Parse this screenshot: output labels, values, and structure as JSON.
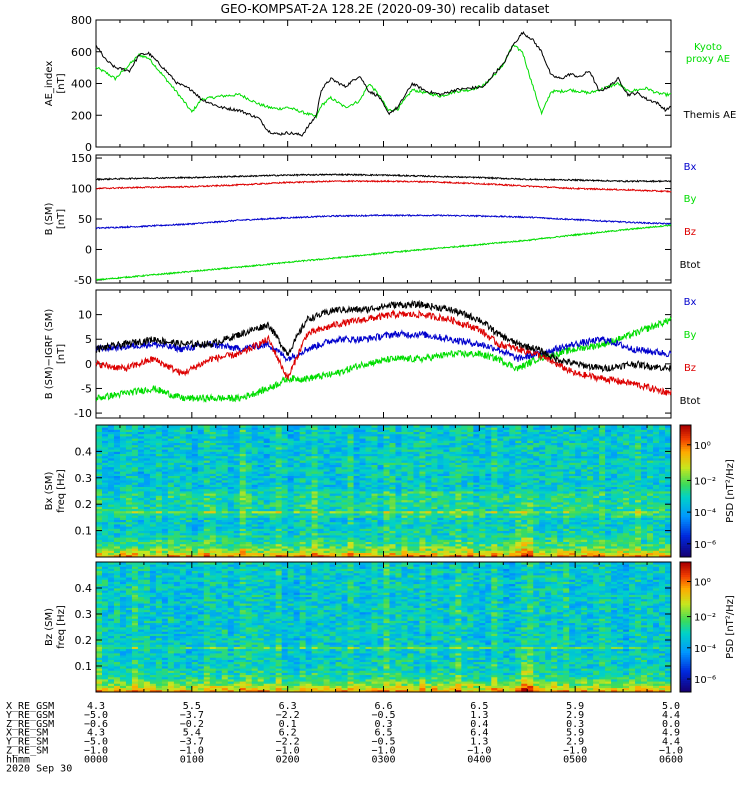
{
  "title": "GEO-KOMPSAT-2A 128.2E (2020-09-30) recalib dataset",
  "colors": {
    "black": "#000000",
    "red": "#dd0000",
    "blue": "#0000cc",
    "green": "#00dd00"
  },
  "chart_data": [
    {
      "type": "line",
      "panel": "ae",
      "ylabel": "AE_index [nT]",
      "ylim": [
        0,
        800
      ],
      "yticks": [
        0,
        200,
        400,
        600,
        800
      ],
      "x_unit": "hours since 2020-09-30 00:00 UT",
      "xlim": [
        0,
        6
      ],
      "series": [
        {
          "name": "Themis AE",
          "color": "#000000",
          "x": [
            0,
            0.1,
            0.2,
            0.35,
            0.45,
            0.55,
            0.7,
            0.85,
            1.0,
            1.1,
            1.3,
            1.5,
            1.7,
            1.8,
            1.9,
            2.0,
            2.15,
            2.3,
            2.35,
            2.45,
            2.6,
            2.75,
            2.85,
            2.95,
            3.05,
            3.15,
            3.3,
            3.45,
            3.6,
            3.75,
            3.9,
            4.05,
            4.15,
            4.25,
            4.35,
            4.45,
            4.55,
            4.65,
            4.75,
            4.85,
            4.95,
            5.05,
            5.15,
            5.25,
            5.35,
            5.45,
            5.55,
            5.65,
            5.75,
            5.85,
            5.95,
            6.0
          ],
          "values": [
            640,
            550,
            500,
            480,
            580,
            590,
            500,
            400,
            360,
            300,
            250,
            230,
            180,
            100,
            80,
            90,
            75,
            200,
            360,
            430,
            380,
            450,
            350,
            320,
            210,
            250,
            400,
            350,
            330,
            360,
            370,
            380,
            460,
            520,
            640,
            720,
            680,
            600,
            450,
            430,
            460,
            440,
            480,
            350,
            380,
            430,
            330,
            340,
            300,
            280,
            230,
            260
          ]
        },
        {
          "name": "Kyoto proxy AE",
          "color": "#00dd00",
          "x": [
            0,
            0.1,
            0.2,
            0.35,
            0.45,
            0.55,
            0.7,
            0.85,
            1.0,
            1.1,
            1.3,
            1.5,
            1.7,
            1.8,
            1.9,
            2.0,
            2.15,
            2.3,
            2.35,
            2.45,
            2.6,
            2.75,
            2.85,
            2.95,
            3.05,
            3.15,
            3.3,
            3.45,
            3.6,
            3.75,
            3.9,
            4.05,
            4.15,
            4.25,
            4.35,
            4.45,
            4.55,
            4.65,
            4.75,
            4.85,
            4.95,
            5.05,
            5.15,
            5.25,
            5.35,
            5.45,
            5.55,
            5.65,
            5.75,
            5.85,
            5.95,
            6.0
          ],
          "values": [
            500,
            470,
            430,
            520,
            580,
            560,
            450,
            340,
            220,
            300,
            320,
            330,
            270,
            250,
            240,
            250,
            220,
            190,
            260,
            310,
            250,
            290,
            400,
            330,
            230,
            240,
            360,
            340,
            320,
            350,
            360,
            390,
            450,
            520,
            640,
            600,
            400,
            210,
            350,
            350,
            360,
            350,
            340,
            360,
            380,
            400,
            350,
            360,
            370,
            340,
            330,
            330
          ]
        }
      ],
      "legend": [
        "Kyoto proxy AE",
        "Themis AE"
      ]
    },
    {
      "type": "line",
      "panel": "b",
      "ylabel": "B (SM) [nT]",
      "ylim": [
        -55,
        155
      ],
      "yticks": [
        -50,
        0,
        50,
        100,
        150
      ],
      "xlim": [
        0,
        6
      ],
      "series": [
        {
          "name": "Bx",
          "color": "#0000cc",
          "x": [
            0,
            0.5,
            1.0,
            1.5,
            2.0,
            2.5,
            3.0,
            3.5,
            4.0,
            4.5,
            5.0,
            5.5,
            6.0
          ],
          "values": [
            35,
            38,
            42,
            48,
            52,
            55,
            56,
            56,
            55,
            53,
            49,
            45,
            42
          ]
        },
        {
          "name": "By",
          "color": "#00dd00",
          "x": [
            0,
            0.5,
            1.0,
            1.5,
            2.0,
            2.5,
            3.0,
            3.5,
            4.0,
            4.5,
            5.0,
            5.5,
            6.0
          ],
          "values": [
            -50,
            -43,
            -36,
            -29,
            -21,
            -14,
            -6,
            1,
            8,
            15,
            24,
            32,
            40
          ]
        },
        {
          "name": "Bz",
          "color": "#dd0000",
          "x": [
            0,
            0.5,
            1.0,
            1.5,
            2.0,
            2.5,
            3.0,
            3.5,
            4.0,
            4.5,
            5.0,
            5.5,
            6.0
          ],
          "values": [
            100,
            102,
            103,
            106,
            110,
            112,
            112,
            111,
            108,
            104,
            100,
            98,
            95
          ]
        },
        {
          "name": "Btot",
          "color": "#000000",
          "x": [
            0,
            0.5,
            1.0,
            1.5,
            2.0,
            2.5,
            3.0,
            3.5,
            4.0,
            4.5,
            5.0,
            5.5,
            6.0
          ],
          "values": [
            115,
            117,
            118,
            120,
            122,
            123,
            122,
            120,
            118,
            115,
            114,
            112,
            112
          ]
        }
      ],
      "legend": [
        "Bx",
        "By",
        "Bz",
        "Btot"
      ]
    },
    {
      "type": "line",
      "panel": "db",
      "ylabel": "B (SM)-IGRF (SM) [nT]",
      "ylim": [
        -11,
        15
      ],
      "yticks": [
        -10,
        -5,
        0,
        5,
        10
      ],
      "xlim": [
        0,
        6
      ],
      "series": [
        {
          "name": "Bx",
          "color": "#0000cc",
          "x": [
            0,
            0.3,
            0.6,
            0.9,
            1.2,
            1.5,
            1.8,
            2.0,
            2.2,
            2.5,
            2.8,
            3.1,
            3.4,
            3.7,
            4.0,
            4.2,
            4.4,
            4.6,
            4.8,
            5.0,
            5.3,
            5.6,
            6.0
          ],
          "values": [
            3,
            3.5,
            4,
            3,
            4,
            3,
            4,
            1,
            3,
            5,
            5,
            6,
            6,
            5,
            4,
            3,
            1,
            2,
            3,
            4,
            5,
            3,
            2
          ]
        },
        {
          "name": "By",
          "color": "#00dd00",
          "x": [
            0,
            0.3,
            0.6,
            0.9,
            1.2,
            1.5,
            1.8,
            2.0,
            2.2,
            2.5,
            2.8,
            3.1,
            3.4,
            3.7,
            4.0,
            4.2,
            4.4,
            4.6,
            4.8,
            5.0,
            5.3,
            5.6,
            6.0
          ],
          "values": [
            -7,
            -6,
            -5,
            -7,
            -7,
            -7,
            -5,
            -3,
            -3,
            -2,
            0,
            1,
            1,
            2,
            2,
            1,
            -1,
            1,
            2,
            3,
            4,
            6,
            9
          ]
        },
        {
          "name": "Bz",
          "color": "#dd0000",
          "x": [
            0,
            0.3,
            0.6,
            0.9,
            1.2,
            1.5,
            1.8,
            2.0,
            2.2,
            2.5,
            2.8,
            3.1,
            3.4,
            3.7,
            4.0,
            4.2,
            4.4,
            4.6,
            4.8,
            5.0,
            5.3,
            5.6,
            6.0
          ],
          "values": [
            0,
            -1,
            1,
            -2,
            1,
            2,
            5,
            -3,
            6,
            8,
            9,
            10,
            10,
            9,
            7,
            4,
            3,
            2,
            0,
            -2,
            -3,
            -4,
            -6
          ]
        },
        {
          "name": "Btot",
          "color": "#000000",
          "x": [
            0,
            0.3,
            0.6,
            0.9,
            1.2,
            1.5,
            1.8,
            2.0,
            2.2,
            2.5,
            2.8,
            3.1,
            3.4,
            3.7,
            4.0,
            4.2,
            4.4,
            4.6,
            4.8,
            5.0,
            5.3,
            5.6,
            6.0
          ],
          "values": [
            3,
            4,
            5,
            4,
            4,
            6,
            8,
            2,
            9,
            11,
            11,
            12,
            12,
            11,
            9,
            6,
            4,
            3,
            1,
            0,
            -1,
            0,
            -1
          ]
        }
      ],
      "legend": [
        "Bx",
        "By",
        "Bz",
        "Btot"
      ]
    },
    {
      "type": "heatmap",
      "panel": "spec_bx",
      "ylabel": "Bx (SM) freq [Hz]",
      "ylim": [
        0,
        0.5
      ],
      "yticks": [
        0.1,
        0.2,
        0.3,
        0.4
      ],
      "xlim": [
        0,
        6
      ],
      "colorbar_label": "PSD [nT²/Hz]",
      "colorbar_ticks": [
        "10⁰",
        "10⁻²",
        "10⁻⁴",
        "10⁻⁶"
      ]
    },
    {
      "type": "heatmap",
      "panel": "spec_bz",
      "ylabel": "Bz (SM) freq [Hz]",
      "ylim": [
        0,
        0.5
      ],
      "yticks": [
        0.1,
        0.2,
        0.3,
        0.4
      ],
      "xlim": [
        0,
        6
      ],
      "colorbar_label": "PSD [nT²/Hz]",
      "colorbar_ticks": [
        "10⁰",
        "10⁻²",
        "10⁻⁴",
        "10⁻⁶"
      ]
    }
  ],
  "ephemeris": {
    "rows": [
      {
        "label": "X_RE_GSM",
        "values": [
          "4.3",
          "5.5",
          "6.3",
          "6.6",
          "6.5",
          "5.9",
          "5.0"
        ]
      },
      {
        "label": "Y_RE_GSM",
        "values": [
          "−5.0",
          "−3.7",
          "−2.2",
          "−0.5",
          "1.3",
          "2.9",
          "4.4"
        ]
      },
      {
        "label": "Z_RE_GSM",
        "values": [
          "−0.6",
          "−0.2",
          "0.1",
          "0.3",
          "0.4",
          "0.3",
          "0.0"
        ]
      },
      {
        "label": "X_RE_SM",
        "values": [
          "4.3",
          "5.4",
          "6.2",
          "6.5",
          "6.4",
          "5.9",
          "4.9"
        ]
      },
      {
        "label": "Y_RE_SM",
        "values": [
          "−5.0",
          "−3.7",
          "−2.2",
          "−0.5",
          "1.3",
          "2.9",
          "4.4"
        ]
      },
      {
        "label": "Z_RE_SM",
        "values": [
          "−1.0",
          "−1.0",
          "−1.0",
          "−1.0",
          "−1.0",
          "−1.0",
          "−1.0"
        ]
      },
      {
        "label": "hhmm",
        "values": [
          "0000",
          "0100",
          "0200",
          "0300",
          "0400",
          "0500",
          "0600"
        ]
      }
    ],
    "date": "2020 Sep 30"
  }
}
